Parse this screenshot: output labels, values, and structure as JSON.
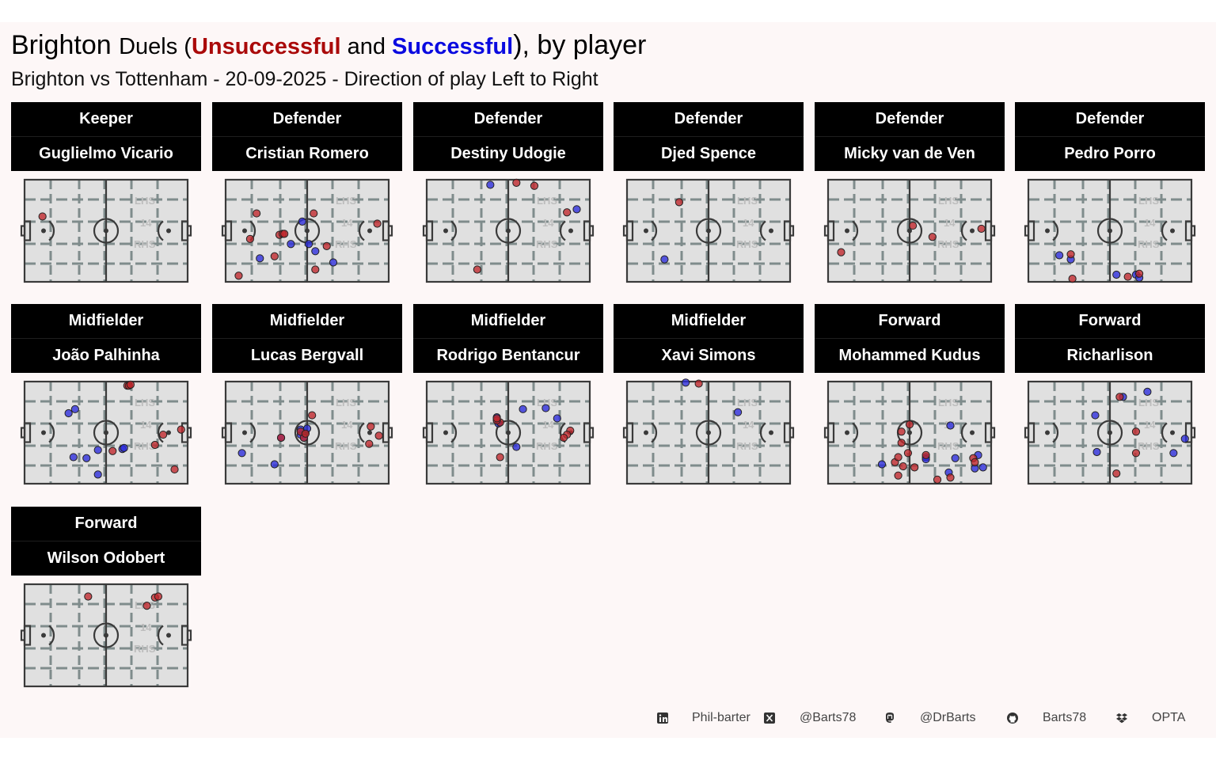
{
  "title": {
    "team": "Brighton",
    "word_duels": "Duels",
    "open_paren": " (",
    "unsuccessful": "Unsuccessful",
    "and": " and ",
    "successful": "Successful",
    "close": "),",
    "by_player": " by player"
  },
  "subtitle": "Brighton vs Tottenham - 20-09-2025 - Direction of play Left to Right",
  "colors": {
    "unsuccessful": "#c0262c",
    "successful": "#2c2cdc",
    "title_unsuccessful": "#aa0a0a",
    "title_successful": "#0a0ae0"
  },
  "pitch_labels": {
    "lhs": "LHS",
    "mid": "14",
    "rhs": "RHS"
  },
  "chart_data": {
    "type": "scatter",
    "x_range": [
      0,
      100
    ],
    "y_range": [
      0,
      100
    ],
    "legend": "none",
    "facets": [
      {
        "position": "Keeper",
        "player": "Guglielmo Vicario",
        "successful": [],
        "unsuccessful": [
          [
            11,
            64
          ]
        ]
      },
      {
        "position": "Defender",
        "player": "Cristian Romero",
        "successful": [
          [
            47,
            59
          ],
          [
            40,
            37
          ],
          [
            51,
            37
          ],
          [
            55,
            30
          ],
          [
            66,
            19
          ],
          [
            21,
            23
          ]
        ],
        "unsuccessful": [
          [
            19,
            67
          ],
          [
            54,
            67
          ],
          [
            15,
            42
          ],
          [
            33,
            46
          ],
          [
            35,
            47
          ],
          [
            36,
            47
          ],
          [
            62,
            35
          ],
          [
            30,
            25
          ],
          [
            93,
            57
          ],
          [
            55,
            12
          ],
          [
            8,
            6
          ]
        ]
      },
      {
        "position": "Defender",
        "player": "Destiny Udogie",
        "successful": [
          [
            39,
            95
          ],
          [
            92,
            71
          ]
        ],
        "unsuccessful": [
          [
            55,
            97
          ],
          [
            66,
            94
          ],
          [
            86,
            68
          ],
          [
            31,
            12
          ]
        ]
      },
      {
        "position": "Defender",
        "player": "Djed Spence",
        "successful": [
          [
            23,
            22
          ]
        ],
        "unsuccessful": [
          [
            32,
            78
          ]
        ]
      },
      {
        "position": "Defender",
        "player": "Micky van de Ven",
        "successful": [],
        "unsuccessful": [
          [
            52,
            55
          ],
          [
            64,
            44
          ],
          [
            94,
            52
          ],
          [
            8,
            29
          ]
        ]
      },
      {
        "position": "Defender",
        "player": "Pedro Porro",
        "successful": [
          [
            19,
            26
          ],
          [
            26,
            22
          ],
          [
            54,
            7
          ],
          [
            66,
            7
          ],
          [
            68,
            4
          ]
        ],
        "unsuccessful": [
          [
            26,
            27
          ],
          [
            27,
            3
          ],
          [
            61,
            5
          ],
          [
            68,
            8
          ]
        ]
      },
      {
        "position": "Midfielder",
        "player": "João Palhinha",
        "successful": [
          [
            31,
            73
          ],
          [
            27,
            69
          ],
          [
            30,
            26
          ],
          [
            38,
            25
          ],
          [
            45,
            33
          ],
          [
            60,
            34
          ],
          [
            61,
            35
          ],
          [
            45,
            9
          ]
        ],
        "unsuccessful": [
          [
            63,
            96
          ],
          [
            64,
            96
          ],
          [
            65,
            97
          ],
          [
            85,
            48
          ],
          [
            96,
            53
          ],
          [
            80,
            38
          ],
          [
            54,
            32
          ],
          [
            92,
            14
          ]
        ]
      },
      {
        "position": "Midfielder",
        "player": "Lucas Bergvall",
        "successful": [
          [
            34,
            45
          ],
          [
            48,
            45
          ],
          [
            46,
            48
          ],
          [
            46,
            53
          ],
          [
            50,
            54
          ],
          [
            10,
            30
          ],
          [
            30,
            19
          ]
        ],
        "unsuccessful": [
          [
            34,
            45
          ],
          [
            48,
            45
          ],
          [
            46,
            51
          ],
          [
            49,
            49
          ],
          [
            53,
            67
          ],
          [
            89,
            56
          ],
          [
            94,
            47
          ],
          [
            88,
            39
          ]
        ]
      },
      {
        "position": "Midfielder",
        "player": "Rodrigo Bentancur",
        "successful": [
          [
            43,
            65
          ],
          [
            44,
            59
          ],
          [
            59,
            73
          ],
          [
            73,
            74
          ],
          [
            80,
            64
          ],
          [
            55,
            36
          ]
        ],
        "unsuccessful": [
          [
            45,
            60
          ],
          [
            43,
            62
          ],
          [
            43,
            64
          ],
          [
            88,
            52
          ],
          [
            86,
            48
          ],
          [
            84,
            45
          ],
          [
            45,
            26
          ]
        ]
      },
      {
        "position": "Midfielder",
        "player": "Xavi Simons",
        "successful": [
          [
            36,
            99
          ],
          [
            68,
            70
          ]
        ],
        "unsuccessful": [
          [
            44,
            98
          ]
        ]
      },
      {
        "position": "Forward",
        "player": "Mohammed Kudus",
        "successful": [
          [
            75,
            57
          ],
          [
            60,
            26
          ],
          [
            92,
            28
          ],
          [
            78,
            25
          ],
          [
            95,
            16
          ],
          [
            90,
            15
          ],
          [
            74,
            11
          ],
          [
            60,
            24
          ],
          [
            33,
            19
          ]
        ],
        "unsuccessful": [
          [
            45,
            51
          ],
          [
            50,
            58
          ],
          [
            45,
            40
          ],
          [
            60,
            28
          ],
          [
            89,
            25
          ],
          [
            90,
            21
          ],
          [
            49,
            30
          ],
          [
            53,
            16
          ],
          [
            46,
            17
          ],
          [
            41,
            21
          ],
          [
            43,
            26
          ],
          [
            75,
            6
          ],
          [
            67,
            4
          ],
          [
            43,
            8
          ]
        ]
      },
      {
        "position": "Forward",
        "player": "Richarlison",
        "successful": [
          [
            73,
            90
          ],
          [
            58,
            85
          ],
          [
            41,
            67
          ],
          [
            96,
            44
          ],
          [
            89,
            30
          ],
          [
            42,
            31
          ]
        ],
        "unsuccessful": [
          [
            56,
            85
          ],
          [
            66,
            51
          ],
          [
            66,
            30
          ],
          [
            54,
            10
          ]
        ]
      },
      {
        "position": "Forward",
        "player": "Wilson Odobert",
        "successful": [],
        "unsuccessful": [
          [
            39,
            88
          ],
          [
            80,
            87
          ],
          [
            82,
            88
          ],
          [
            75,
            79
          ]
        ]
      }
    ]
  },
  "footer": [
    {
      "icon": "linkedin-icon",
      "text": "Phil-barter"
    },
    {
      "icon": "x-icon",
      "text": "@Barts78"
    },
    {
      "icon": "mastodon-icon",
      "text": "@DrBarts"
    },
    {
      "icon": "github-icon",
      "text": "Barts78"
    },
    {
      "icon": "dropbox-icon",
      "text": "OPTA"
    }
  ]
}
